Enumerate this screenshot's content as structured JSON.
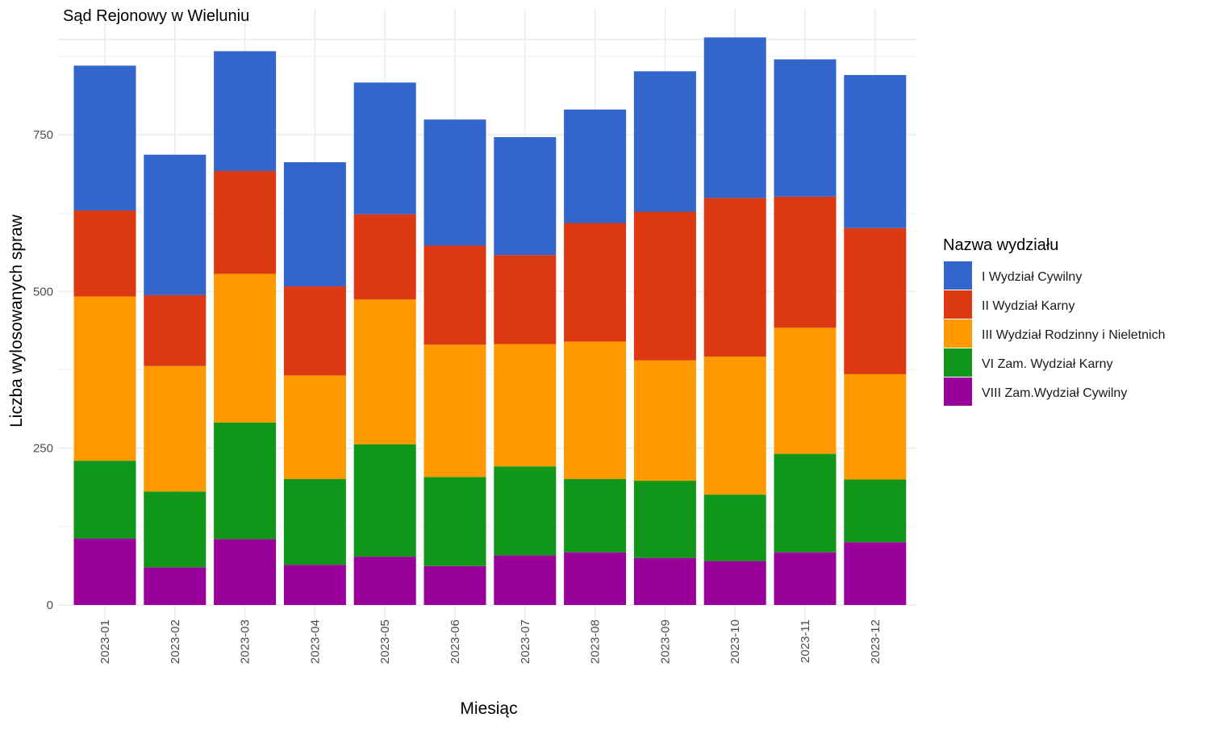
{
  "chart_data": {
    "type": "bar",
    "stacked": true,
    "title": "Sąd Rejonowy w Wieluniu",
    "xlabel": "Miesiąc",
    "ylabel": "Liczba wylosowanych spraw",
    "ylim": [
      0,
      905
    ],
    "yticks": [
      0,
      250,
      500,
      750
    ],
    "grid": true,
    "legend_position": "right",
    "legend_title": "Nazwa wydziału",
    "categories": [
      "2023-01",
      "2023-02",
      "2023-03",
      "2023-04",
      "2023-05",
      "2023-06",
      "2023-07",
      "2023-08",
      "2023-09",
      "2023-10",
      "2023-11",
      "2023-12"
    ],
    "series": [
      {
        "name": "VIII Zam.Wydział Cywilny",
        "color": "#990099",
        "values": [
          106,
          60,
          105,
          64,
          77,
          62,
          79,
          84,
          75,
          70,
          84,
          100
        ]
      },
      {
        "name": "VI Zam. Wydział Karny",
        "color": "#109618",
        "values": [
          124,
          121,
          186,
          137,
          179,
          142,
          142,
          117,
          123,
          106,
          157,
          100
        ]
      },
      {
        "name": "III Wydział Rodzinny i Nieletnich",
        "color": "#ff9900",
        "values": [
          262,
          200,
          237,
          165,
          231,
          211,
          195,
          219,
          192,
          220,
          201,
          168
        ]
      },
      {
        "name": "II Wydział Karny",
        "color": "#dc3912",
        "values": [
          137,
          113,
          164,
          142,
          136,
          158,
          142,
          189,
          237,
          253,
          209,
          233
        ]
      },
      {
        "name": "I Wydział Cywilny",
        "color": "#3366cc",
        "values": [
          231,
          224,
          191,
          198,
          210,
          201,
          188,
          181,
          224,
          256,
          219,
          244
        ]
      }
    ],
    "legend_order": [
      "I Wydział Cywilny",
      "II Wydział Karny",
      "III Wydział Rodzinny i Nieletnich",
      "VI Zam. Wydział Karny",
      "VIII Zam.Wydział Cywilny"
    ]
  }
}
